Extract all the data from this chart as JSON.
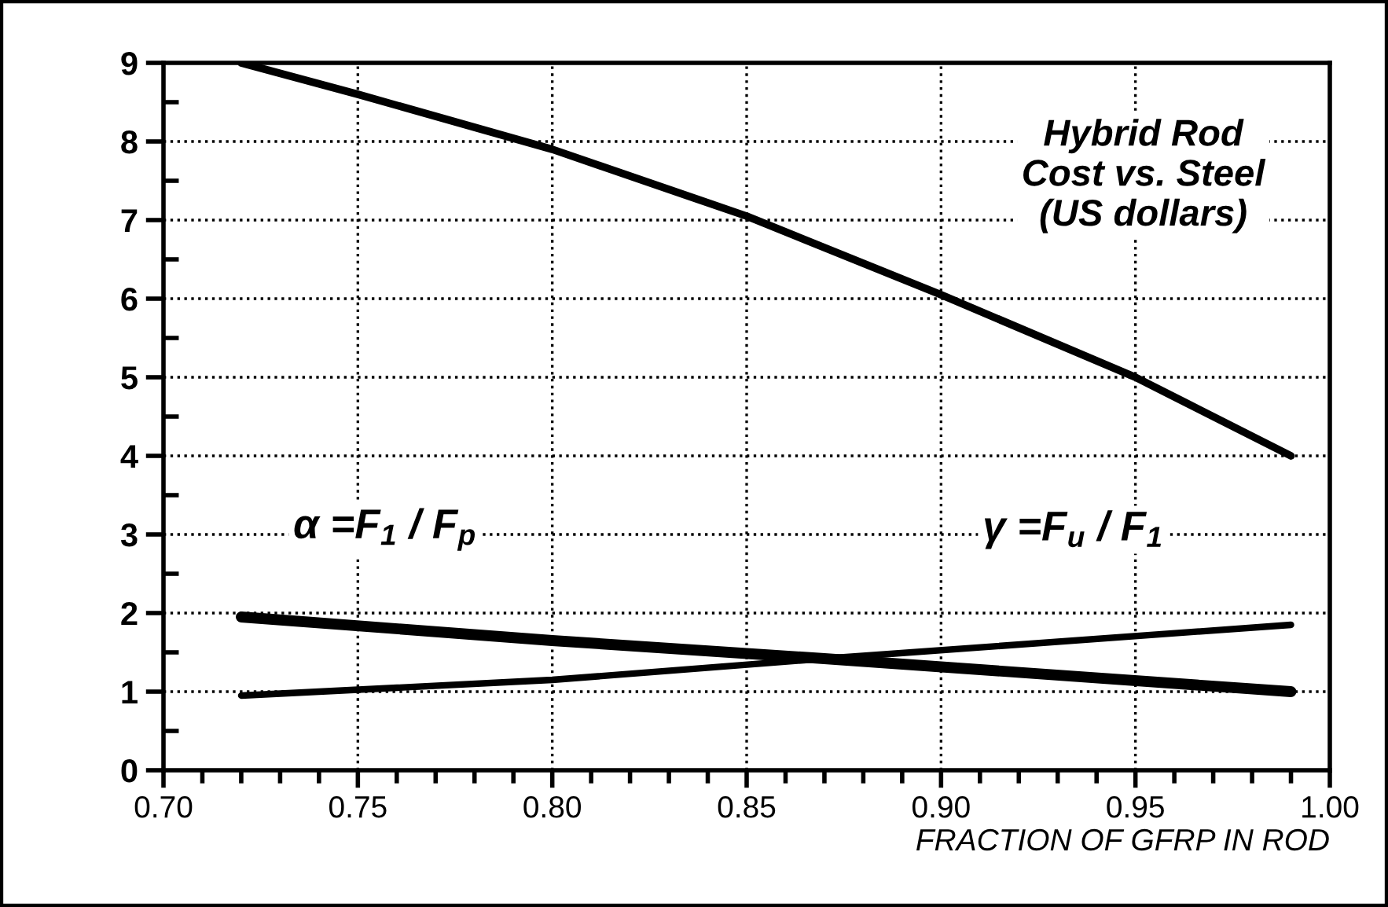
{
  "chart_data": {
    "type": "line",
    "xlabel": "FRACTION OF GFRP IN ROD",
    "x": [
      0.72,
      0.75,
      0.8,
      0.85,
      0.9,
      0.95,
      0.99
    ],
    "series": [
      {
        "name": "Hybrid Rod\nCost vs. Steel\n(US dollars)",
        "color": "#000000",
        "values": [
          9.0,
          8.6,
          7.9,
          7.05,
          6.05,
          5.0,
          4.0
        ]
      },
      {
        "name": "α =F$_{1}$ / F$_{p}$",
        "color": "#000000",
        "x": [
          0.72,
          0.8,
          0.87,
          0.99
        ],
        "values": [
          1.95,
          1.65,
          1.42,
          1.0
        ]
      },
      {
        "name": "γ =F$_{u}$ / F$_{1}$",
        "color": "#000000",
        "x": [
          0.72,
          0.8,
          0.87,
          0.99
        ],
        "values": [
          0.95,
          1.15,
          1.42,
          1.85
        ]
      }
    ],
    "xlim": [
      0.7,
      1.0
    ],
    "ylim": [
      0,
      9
    ],
    "xticks": [
      {
        "value": 0.7,
        "label": "0.70"
      },
      {
        "value": 0.75,
        "label": "0.75"
      },
      {
        "value": 0.8,
        "label": "0.80"
      },
      {
        "value": 0.85,
        "label": "0.85"
      },
      {
        "value": 0.9,
        "label": "0.90"
      },
      {
        "value": 0.95,
        "label": "0.95"
      },
      {
        "value": 1.0,
        "label": "1.00"
      }
    ],
    "yticks": [
      0,
      1,
      2,
      3,
      4,
      5,
      6,
      7,
      8,
      9
    ],
    "grid": true,
    "marker": "none",
    "line_style": "solid"
  }
}
